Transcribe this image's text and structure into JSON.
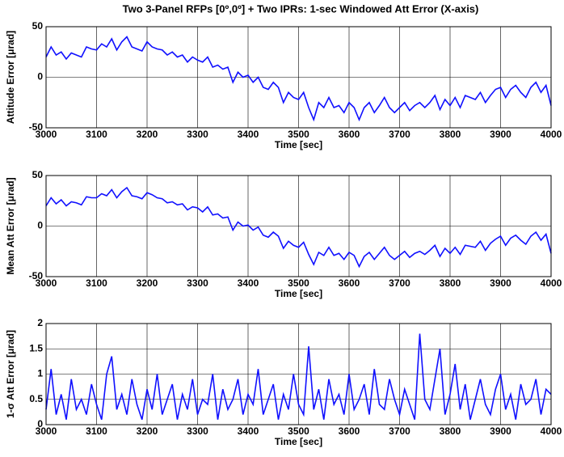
{
  "title": "Two 3-Panel RFPs [0º,0º] + Two IPRs:  1-sec Windowed Att Error (X-axis)",
  "chart_data": [
    {
      "type": "line",
      "ylabel": "Attitude Error [μrad]",
      "xlabel": "Time [sec]",
      "color": "#1010ff",
      "grid": true,
      "xlim": [
        3000,
        4000
      ],
      "ylim": [
        -50,
        50
      ],
      "xticks": [
        3000,
        3100,
        3200,
        3300,
        3400,
        3500,
        3600,
        3700,
        3800,
        3900,
        4000
      ],
      "yticks": [
        -50,
        0,
        50
      ],
      "x": [
        3000,
        3010,
        3020,
        3030,
        3040,
        3050,
        3060,
        3070,
        3080,
        3090,
        3100,
        3110,
        3120,
        3130,
        3140,
        3150,
        3160,
        3170,
        3180,
        3190,
        3200,
        3210,
        3220,
        3230,
        3240,
        3250,
        3260,
        3270,
        3280,
        3290,
        3300,
        3310,
        3320,
        3330,
        3340,
        3350,
        3360,
        3370,
        3380,
        3390,
        3400,
        3410,
        3420,
        3430,
        3440,
        3450,
        3460,
        3470,
        3480,
        3490,
        3500,
        3510,
        3520,
        3530,
        3540,
        3550,
        3560,
        3570,
        3580,
        3590,
        3600,
        3610,
        3620,
        3630,
        3640,
        3650,
        3660,
        3670,
        3680,
        3690,
        3700,
        3710,
        3720,
        3730,
        3740,
        3750,
        3760,
        3770,
        3780,
        3790,
        3800,
        3810,
        3820,
        3830,
        3840,
        3850,
        3860,
        3870,
        3880,
        3890,
        3900,
        3910,
        3920,
        3930,
        3940,
        3950,
        3960,
        3970,
        3980,
        3990,
        4000
      ],
      "values": [
        20,
        30,
        22,
        25,
        18,
        24,
        22,
        20,
        30,
        28,
        27,
        33,
        30,
        38,
        27,
        35,
        40,
        30,
        28,
        26,
        35,
        30,
        28,
        27,
        22,
        25,
        20,
        22,
        15,
        20,
        17,
        15,
        20,
        10,
        12,
        8,
        10,
        -5,
        5,
        0,
        2,
        -5,
        0,
        -10,
        -12,
        -5,
        -10,
        -25,
        -15,
        -20,
        -22,
        -15,
        -30,
        -42,
        -25,
        -30,
        -20,
        -30,
        -28,
        -35,
        -25,
        -30,
        -42,
        -30,
        -25,
        -35,
        -28,
        -20,
        -30,
        -35,
        -30,
        -25,
        -33,
        -28,
        -25,
        -30,
        -25,
        -18,
        -32,
        -22,
        -28,
        -20,
        -30,
        -18,
        -20,
        -22,
        -15,
        -25,
        -18,
        -12,
        -10,
        -20,
        -12,
        -8,
        -15,
        -20,
        -10,
        -5,
        -15,
        -8,
        -28
      ]
    },
    {
      "type": "line",
      "ylabel": "Mean Att Error [μrad]",
      "xlabel": "Time [sec]",
      "color": "#1010ff",
      "grid": true,
      "xlim": [
        3000,
        4000
      ],
      "ylim": [
        -50,
        50
      ],
      "xticks": [
        3000,
        3100,
        3200,
        3300,
        3400,
        3500,
        3600,
        3700,
        3800,
        3900,
        4000
      ],
      "yticks": [
        -50,
        0,
        50
      ],
      "x": [
        3000,
        3010,
        3020,
        3030,
        3040,
        3050,
        3060,
        3070,
        3080,
        3090,
        3100,
        3110,
        3120,
        3130,
        3140,
        3150,
        3160,
        3170,
        3180,
        3190,
        3200,
        3210,
        3220,
        3230,
        3240,
        3250,
        3260,
        3270,
        3280,
        3290,
        3300,
        3310,
        3320,
        3330,
        3340,
        3350,
        3360,
        3370,
        3380,
        3390,
        3400,
        3410,
        3420,
        3430,
        3440,
        3450,
        3460,
        3470,
        3480,
        3490,
        3500,
        3510,
        3520,
        3530,
        3540,
        3550,
        3560,
        3570,
        3580,
        3590,
        3600,
        3610,
        3620,
        3630,
        3640,
        3650,
        3660,
        3670,
        3680,
        3690,
        3700,
        3710,
        3720,
        3730,
        3740,
        3750,
        3760,
        3770,
        3780,
        3790,
        3800,
        3810,
        3820,
        3830,
        3840,
        3850,
        3860,
        3870,
        3880,
        3890,
        3900,
        3910,
        3920,
        3930,
        3940,
        3950,
        3960,
        3970,
        3980,
        3990,
        4000
      ],
      "values": [
        20,
        28,
        22,
        26,
        20,
        24,
        23,
        21,
        29,
        28,
        28,
        32,
        30,
        36,
        28,
        34,
        38,
        30,
        29,
        27,
        33,
        31,
        28,
        27,
        23,
        24,
        21,
        22,
        16,
        19,
        18,
        14,
        19,
        11,
        12,
        8,
        9,
        -4,
        4,
        0,
        1,
        -4,
        -1,
        -9,
        -11,
        -6,
        -10,
        -22,
        -15,
        -19,
        -21,
        -16,
        -28,
        -38,
        -26,
        -29,
        -21,
        -29,
        -27,
        -33,
        -26,
        -29,
        -40,
        -30,
        -26,
        -33,
        -27,
        -21,
        -29,
        -33,
        -29,
        -25,
        -31,
        -27,
        -25,
        -28,
        -24,
        -19,
        -30,
        -22,
        -27,
        -21,
        -28,
        -19,
        -20,
        -21,
        -15,
        -24,
        -17,
        -13,
        -10,
        -19,
        -12,
        -9,
        -14,
        -18,
        -10,
        -6,
        -14,
        -8,
        -27
      ]
    },
    {
      "type": "line",
      "ylabel": "1-σ Att Error [μrad]",
      "xlabel": "Time [sec]",
      "color": "#1010ff",
      "grid": true,
      "xlim": [
        3000,
        4000
      ],
      "ylim": [
        0,
        2
      ],
      "xticks": [
        3000,
        3100,
        3200,
        3300,
        3400,
        3500,
        3600,
        3700,
        3800,
        3900,
        4000
      ],
      "yticks": [
        0,
        0.5,
        1,
        1.5,
        2
      ],
      "x": [
        3000,
        3010,
        3020,
        3030,
        3040,
        3050,
        3060,
        3070,
        3080,
        3090,
        3100,
        3110,
        3120,
        3130,
        3140,
        3150,
        3160,
        3170,
        3180,
        3190,
        3200,
        3210,
        3220,
        3230,
        3240,
        3250,
        3260,
        3270,
        3280,
        3290,
        3300,
        3310,
        3320,
        3330,
        3340,
        3350,
        3360,
        3370,
        3380,
        3390,
        3400,
        3410,
        3420,
        3430,
        3440,
        3450,
        3460,
        3470,
        3480,
        3490,
        3500,
        3510,
        3520,
        3530,
        3540,
        3550,
        3560,
        3570,
        3580,
        3590,
        3600,
        3610,
        3620,
        3630,
        3640,
        3650,
        3660,
        3670,
        3680,
        3690,
        3700,
        3710,
        3720,
        3730,
        3740,
        3750,
        3760,
        3770,
        3780,
        3790,
        3800,
        3810,
        3820,
        3830,
        3840,
        3850,
        3860,
        3870,
        3880,
        3890,
        3900,
        3910,
        3920,
        3930,
        3940,
        3950,
        3960,
        3970,
        3980,
        3990,
        4000
      ],
      "values": [
        0.3,
        1.1,
        0.2,
        0.6,
        0.1,
        0.9,
        0.3,
        0.5,
        0.2,
        0.8,
        0.4,
        0.1,
        1.0,
        1.35,
        0.3,
        0.6,
        0.2,
        0.9,
        0.4,
        0.1,
        0.7,
        0.3,
        1.0,
        0.2,
        0.5,
        0.8,
        0.1,
        0.6,
        0.3,
        0.9,
        0.2,
        0.5,
        0.4,
        1.0,
        0.1,
        0.7,
        0.3,
        0.5,
        0.9,
        0.2,
        0.6,
        0.4,
        1.1,
        0.2,
        0.5,
        0.8,
        0.1,
        0.6,
        0.3,
        1.0,
        0.4,
        0.2,
        1.55,
        0.3,
        0.7,
        0.1,
        0.9,
        0.4,
        0.6,
        0.2,
        1.0,
        0.3,
        0.5,
        0.8,
        0.2,
        1.1,
        0.4,
        0.3,
        0.9,
        0.5,
        0.2,
        0.7,
        0.4,
        0.1,
        1.8,
        0.5,
        0.3,
        0.9,
        1.5,
        0.2,
        0.6,
        1.2,
        0.3,
        0.8,
        0.1,
        0.5,
        0.9,
        0.4,
        0.2,
        0.7,
        1.0,
        0.3,
        0.6,
        0.1,
        0.8,
        0.4,
        0.5,
        0.9,
        0.2,
        0.7,
        0.6
      ]
    }
  ]
}
